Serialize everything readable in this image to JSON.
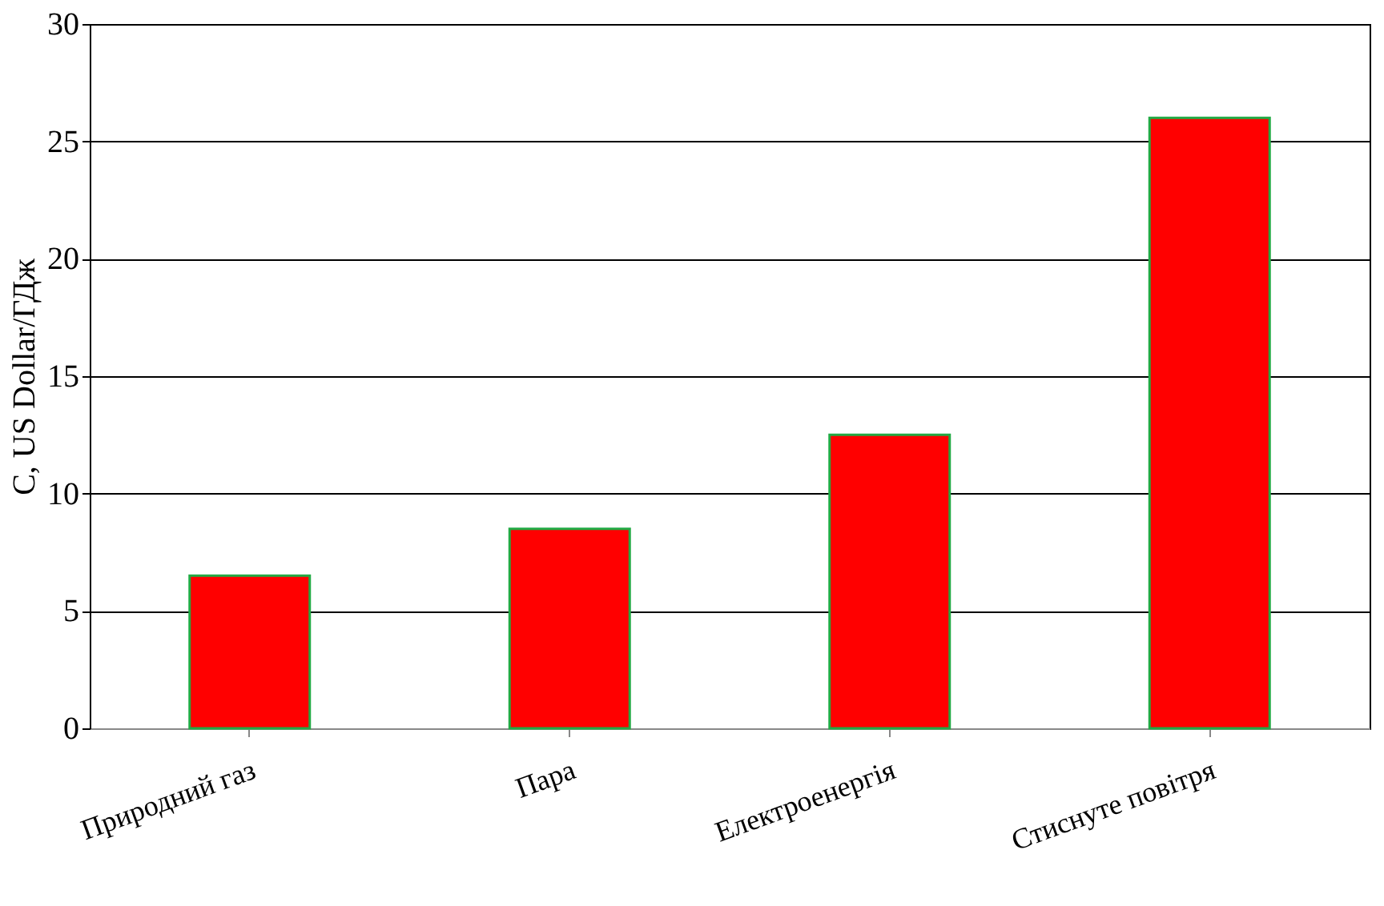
{
  "chart_data": {
    "type": "bar",
    "ylabel": "C, US Dollar/ГДж",
    "categories": [
      "Природний газ",
      "Пара",
      "Електроенергія",
      "Стиснуте повітря"
    ],
    "series": [
      {
        "color": "#ff0000",
        "values": [
          6.5,
          8.5,
          12.5,
          26
        ]
      }
    ],
    "ylim": [
      0,
      30
    ],
    "yticks": [
      0,
      5,
      10,
      15,
      20,
      25,
      30
    ],
    "grid": "y",
    "legend": false
  }
}
